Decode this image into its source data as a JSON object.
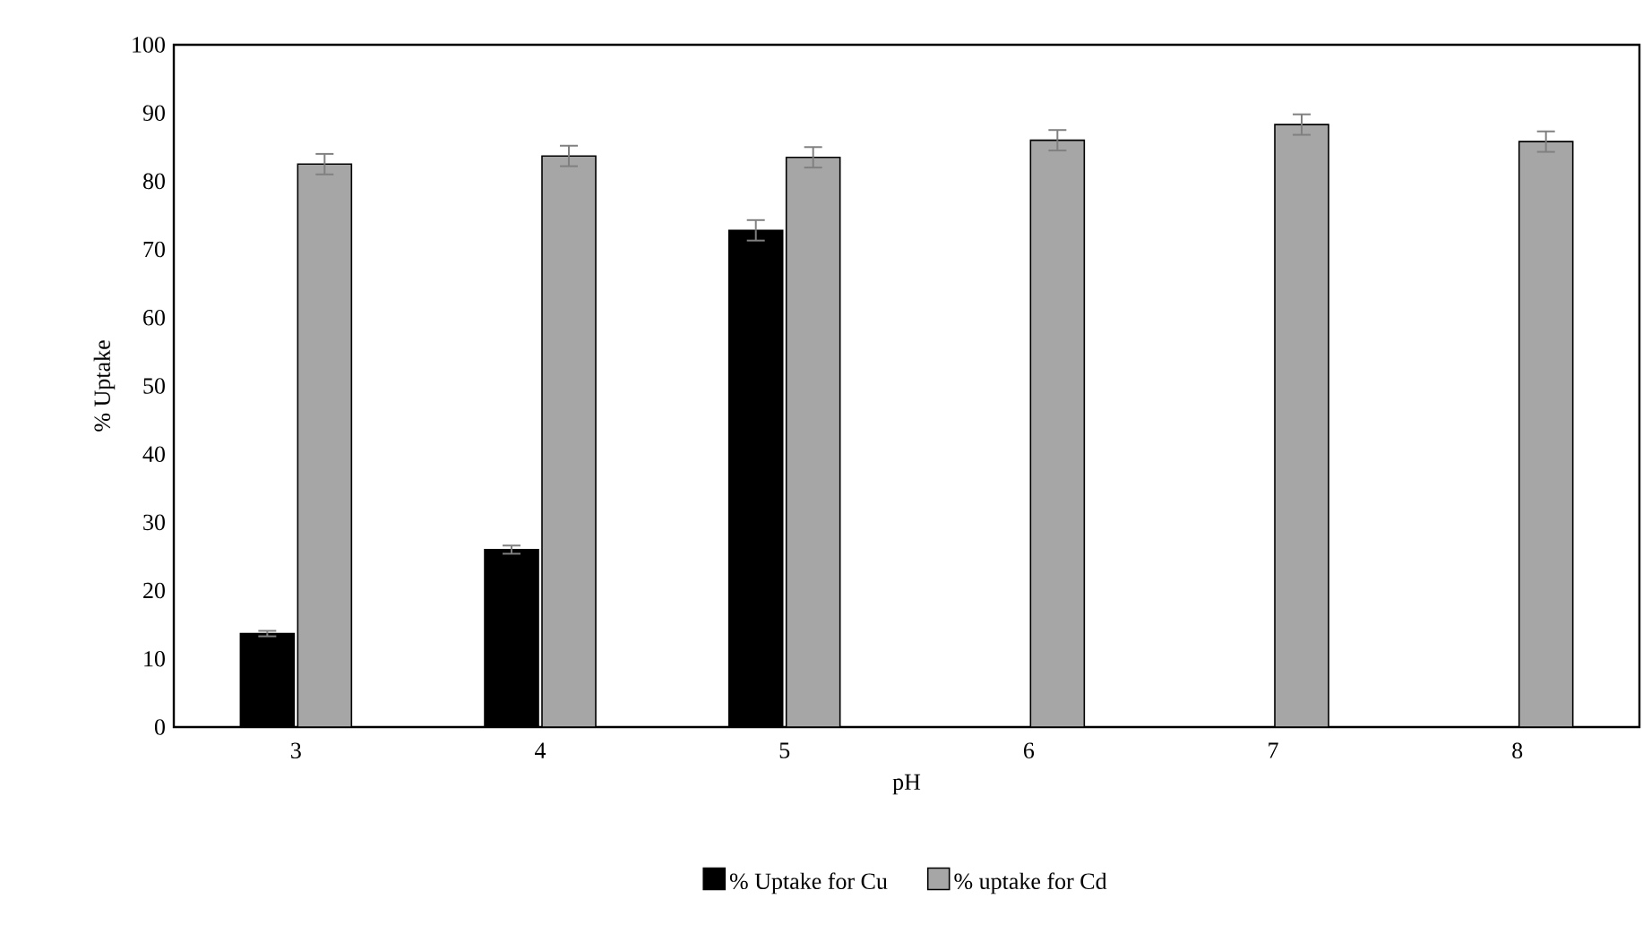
{
  "chart_data": {
    "type": "bar",
    "xlabel": "pH",
    "ylabel": "% Uptake",
    "categories": [
      "3",
      "4",
      "5",
      "6",
      "7",
      "8"
    ],
    "series": [
      {
        "name": "% Uptake for Cu",
        "color": "#000000",
        "values": [
          13.7,
          26.0,
          72.8,
          null,
          null,
          null
        ],
        "errors": [
          0.4,
          0.6,
          1.5,
          null,
          null,
          null
        ]
      },
      {
        "name": "% uptake for Cd",
        "color": "#a6a6a6",
        "values": [
          82.5,
          83.7,
          83.5,
          86.0,
          88.3,
          85.8
        ],
        "errors": [
          1.5,
          1.5,
          1.5,
          1.5,
          1.5,
          1.5
        ]
      }
    ],
    "ylim": [
      0,
      100
    ],
    "yticks": [
      0,
      10,
      20,
      30,
      40,
      50,
      60,
      70,
      80,
      90,
      100
    ],
    "grid": false,
    "legend": "bottom"
  }
}
